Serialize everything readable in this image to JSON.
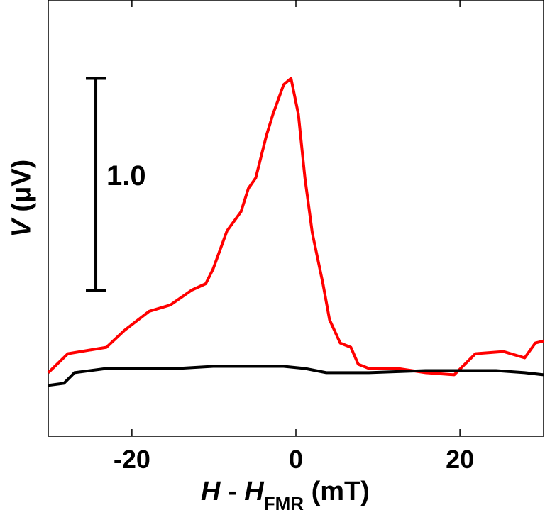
{
  "chart_data": {
    "type": "line",
    "title": "",
    "xlabel": {
      "main": "H",
      "separator": " - ",
      "var": "H",
      "subscript": "FMR",
      "unit": " (mT)"
    },
    "ylabel": {
      "var": "V",
      "unit": " (μV)"
    },
    "xlim": [
      -30.2,
      30.2
    ],
    "ylim": [
      -0.32,
      1.74
    ],
    "xticks": [
      -20,
      0,
      20
    ],
    "xtick_labels": [
      "-20",
      "0",
      "20"
    ],
    "yticks": [],
    "grid": false,
    "scale_bar": {
      "label": "1.0",
      "x": -24.4,
      "y_from": 0.37,
      "y_to": 1.37
    },
    "series": [
      {
        "color": "#ff0000",
        "x": [
          -30.2,
          -27.8,
          -23.1,
          -20.9,
          -17.9,
          -15.3,
          -12.7,
          -11.0,
          -10.1,
          -8.4,
          -6.7,
          -5.8,
          -4.9,
          -3.6,
          -2.8,
          -1.5,
          -0.6,
          0.3,
          1.1,
          2.0,
          3.3,
          4.1,
          5.4,
          6.7,
          7.6,
          8.9,
          12.4,
          15.8,
          19.3,
          21.9,
          25.3,
          27.9,
          29.2,
          30.2
        ],
        "y": [
          -0.02,
          0.07,
          0.1,
          0.18,
          0.27,
          0.3,
          0.37,
          0.4,
          0.47,
          0.65,
          0.74,
          0.85,
          0.9,
          1.1,
          1.2,
          1.34,
          1.37,
          1.2,
          0.9,
          0.64,
          0.4,
          0.23,
          0.12,
          0.1,
          0.02,
          0.0,
          0.0,
          -0.02,
          -0.03,
          0.07,
          0.08,
          0.05,
          0.12,
          0.13
        ]
      },
      {
        "color": "#000000",
        "x": [
          -30.2,
          -28.3,
          -27.0,
          -23.1,
          -14.5,
          -10.1,
          -1.5,
          1.1,
          3.7,
          8.9,
          15.8,
          24.4,
          27.9,
          30.2
        ],
        "y": [
          -0.08,
          -0.07,
          -0.02,
          0.0,
          0.0,
          0.01,
          0.01,
          0.0,
          -0.02,
          -0.02,
          -0.01,
          -0.01,
          -0.02,
          -0.03
        ]
      }
    ]
  }
}
